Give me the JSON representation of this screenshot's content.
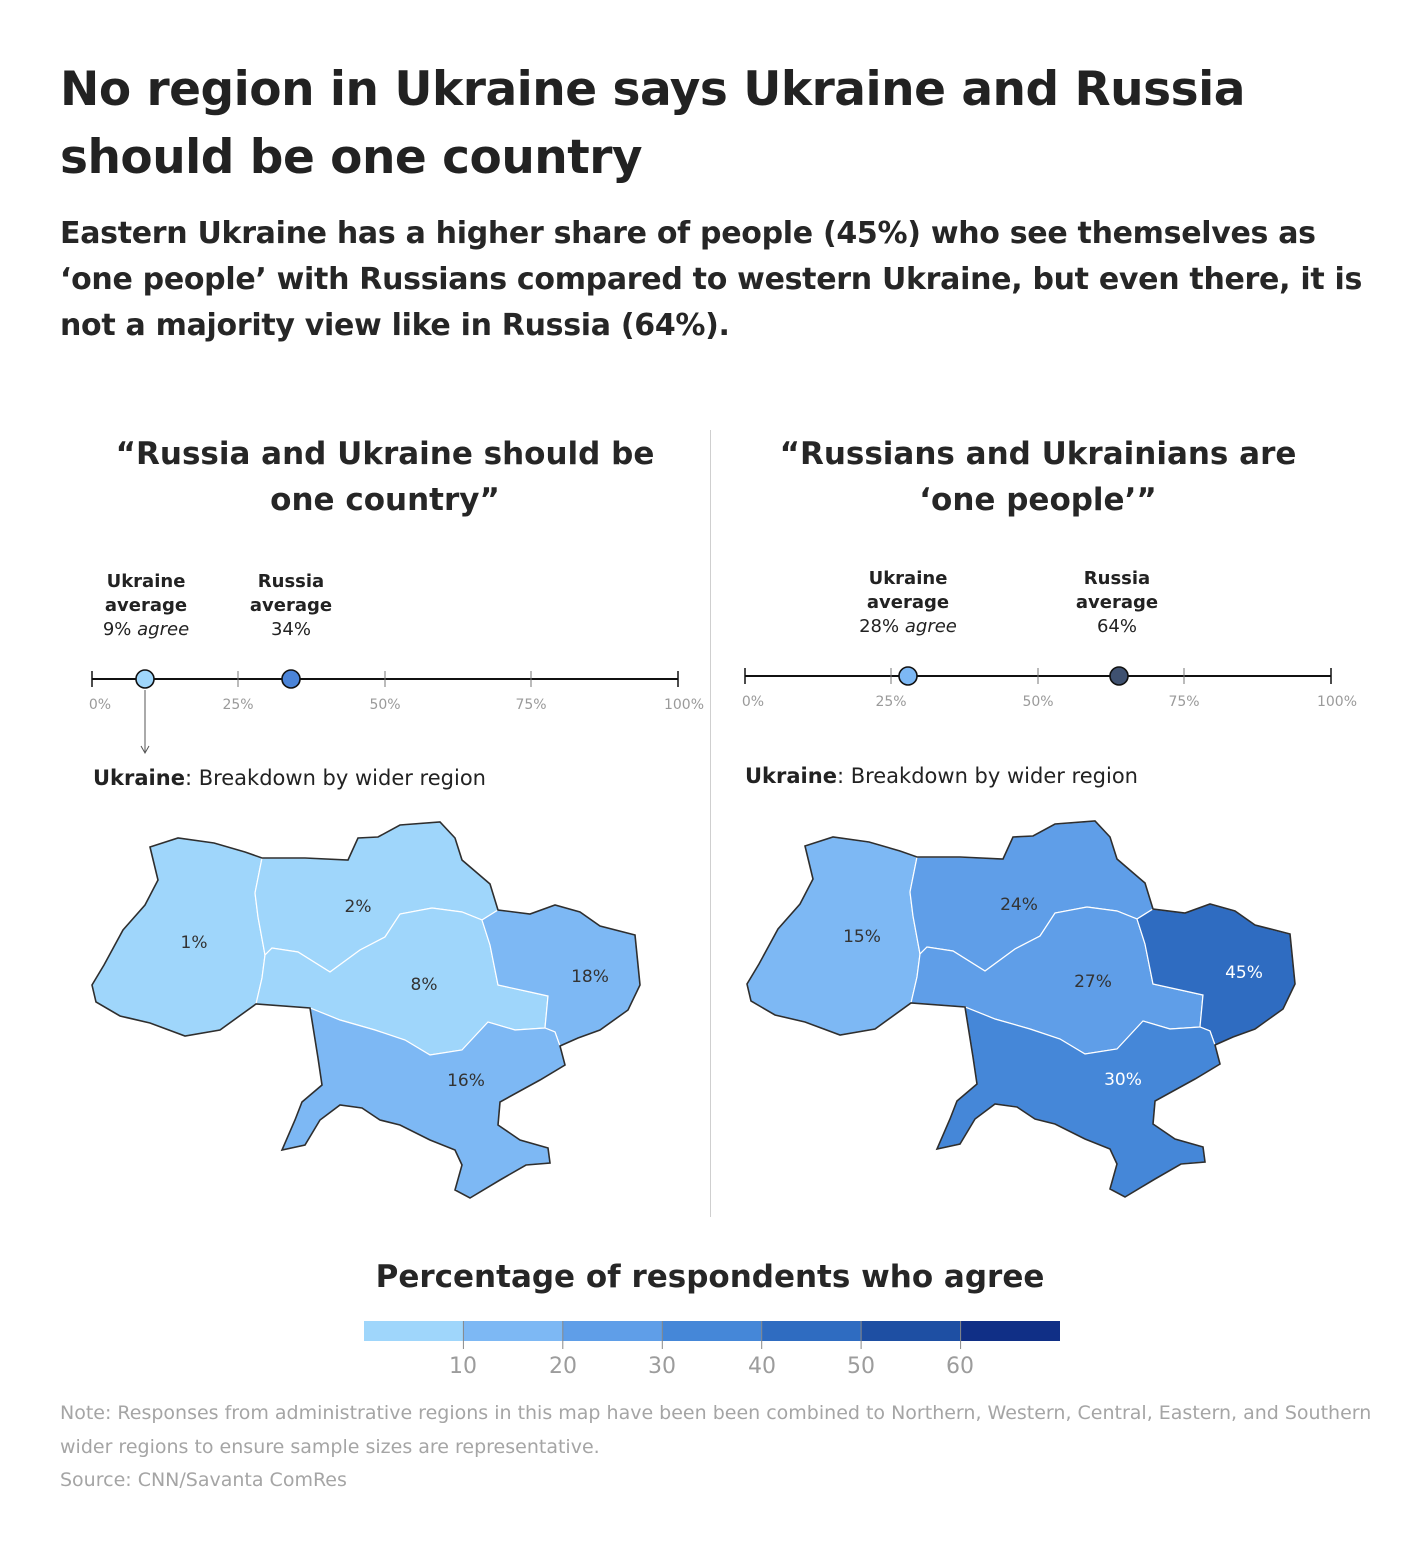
{
  "headline": "No region in Ukraine says Ukraine and Russia should be one country",
  "subhead": "Eastern Ukraine has a higher share of people (45%) who see themselves as ‘one people’ with Russians compared to western Ukraine, but even there, it is not a majority view like in Russia (64%).",
  "panels": [
    {
      "title": "“Russia and Ukraine should be one country”",
      "ukraine_label": "Ukraine average",
      "ukraine_value_num": "9%",
      "ukraine_value_word": "agree",
      "russia_label": "Russia average",
      "russia_value": "34%",
      "ticks": [
        "0%",
        "25%",
        "50%",
        "75%",
        "100%"
      ],
      "breakdown_bold": "Ukraine",
      "breakdown_rest": ": Breakdown by wider region",
      "regions": {
        "western": "1%",
        "northern": "2%",
        "central": "8%",
        "eastern": "18%",
        "southern": "16%"
      }
    },
    {
      "title": "“Russians and Ukrainians are ‘one people’”",
      "ukraine_label": "Ukraine average",
      "ukraine_value_num": "28%",
      "ukraine_value_word": "agree",
      "russia_label": "Russia average",
      "russia_value": "64%",
      "ticks": [
        "0%",
        "25%",
        "50%",
        "75%",
        "100%"
      ],
      "breakdown_bold": "Ukraine",
      "breakdown_rest": ": Breakdown by wider region",
      "regions": {
        "western": "15%",
        "northern": "24%",
        "central": "27%",
        "eastern": "45%",
        "southern": "30%"
      }
    }
  ],
  "map_data": [
    {
      "western": 1,
      "northern": 2,
      "central": 8,
      "eastern": 18,
      "southern": 16,
      "ukraine_average": 9,
      "russia_average": 34
    },
    {
      "western": 15,
      "northern": 24,
      "central": 27,
      "eastern": 45,
      "southern": 30,
      "ukraine_average": 28,
      "russia_average": 64
    }
  ],
  "legend": {
    "title": "Percentage of respondents who agree",
    "ticks": [
      "10",
      "20",
      "30",
      "40",
      "50",
      "60"
    ],
    "colors": [
      "#9fd6fb",
      "#7db8f4",
      "#5f9ee8",
      "#4587d8",
      "#2f6cc1",
      "#1e4fa3",
      "#102f86"
    ]
  },
  "note": "Note: Responses from administrative regions in this map have been been combined to Northern, Western, Central, Eastern, and Southern wider regions to ensure sample sizes are representative.",
  "source": "Source: CNN/Savanta ComRes"
}
